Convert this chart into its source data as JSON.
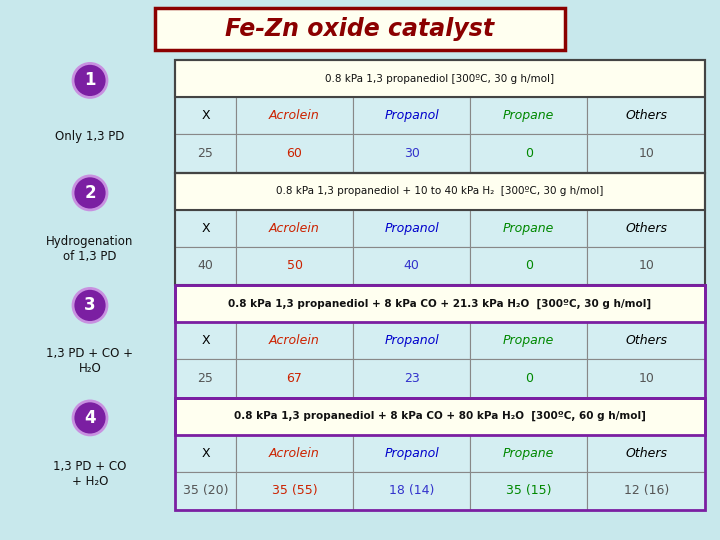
{
  "title": "Fe-Zn oxide catalyst",
  "title_color": "#8B0000",
  "title_bg": "#FFFFF0",
  "title_border": "#8B0000",
  "bg_color": "#C8E8EC",
  "sections": [
    {
      "number": "1",
      "left_label": "Only 1,3 PD",
      "header": "0.8 kPa 1,3 propanediol [300ºC, 30 g h/mol]",
      "cols": [
        "X",
        "Acrolein",
        "Propanol",
        "Propane",
        "Others"
      ],
      "values": [
        "25",
        "60",
        "30",
        "0",
        "10"
      ]
    },
    {
      "number": "2",
      "left_label": "Hydrogenation\nof 1,3 PD",
      "header": "0.8 kPa 1,3 propanediol + 10 to 40 kPa H₂  [300ºC, 30 g h/mol]",
      "cols": [
        "X",
        "Acrolein",
        "Propanol",
        "Propane",
        "Others"
      ],
      "values": [
        "40",
        "50",
        "40",
        "0",
        "10"
      ]
    },
    {
      "number": "3",
      "left_label": "1,3 PD + CO +\nH₂O",
      "header": "0.8 kPa 1,3 propanediol + 8 kPa CO + 21.3 kPa H₂O  [300ºC, 30 g h/mol]",
      "cols": [
        "X",
        "Acrolein",
        "Propanol",
        "Propane",
        "Others"
      ],
      "values": [
        "25",
        "67",
        "23",
        "0",
        "10"
      ]
    },
    {
      "number": "4",
      "left_label": "1,3 PD + CO\n+ H₂O",
      "header": "0.8 kPa 1,3 propanediol + 8 kPa CO + 80 kPa H₂O  [300ºC, 60 g h/mol]",
      "cols": [
        "X",
        "Acrolein",
        "Propanol",
        "Propane",
        "Others"
      ],
      "values": [
        "35 (20)",
        "35 (55)",
        "18 (14)",
        "35 (15)",
        "12 (16)"
      ]
    }
  ],
  "col_colors": [
    "#000000",
    "#CC2200",
    "#0000CC",
    "#008800",
    "#000000"
  ],
  "val_colors": [
    "#555555",
    "#CC2200",
    "#3333CC",
    "#008800",
    "#555555"
  ],
  "circle_color": "#7B1FA2",
  "header_bg": "#FFFFF0",
  "cell_bg": "#D4EEF2",
  "section_border_color": "#7B1FA2",
  "inner_border_color": "#888888"
}
